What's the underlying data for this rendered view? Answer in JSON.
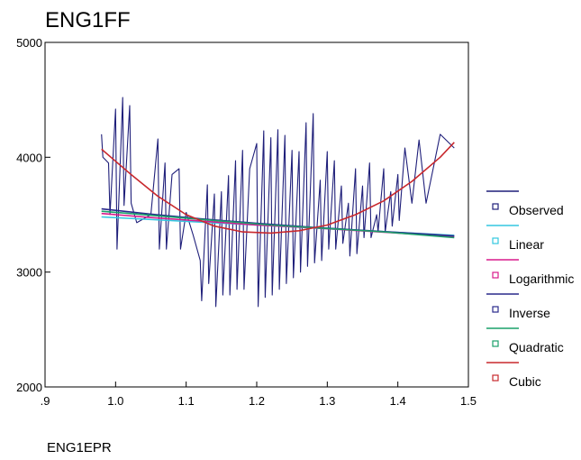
{
  "chart_data": {
    "type": "line",
    "title": "ENG1FF",
    "ylabel": "ENG1FF",
    "xlabel": "ENG1EPR",
    "xlim": [
      0.9,
      1.5
    ],
    "ylim": [
      2000,
      5000
    ],
    "x_ticks": [
      0.9,
      1.0,
      1.1,
      1.2,
      1.3,
      1.4,
      1.5
    ],
    "x_tick_labels": [
      ".9",
      "1.0",
      "1.1",
      "1.2",
      "1.3",
      "1.4",
      "1.5"
    ],
    "y_ticks": [
      2000,
      3000,
      4000,
      5000
    ],
    "y_tick_labels": [
      "2000",
      "3000",
      "4000",
      "5000"
    ],
    "grid": false,
    "legend_position": "right",
    "series": [
      {
        "name": "Observed",
        "color": "#1f1f7a",
        "x": [
          0.98,
          0.982,
          0.99,
          0.992,
          1.0,
          1.002,
          1.01,
          1.012,
          1.02,
          1.022,
          1.03,
          1.05,
          1.06,
          1.062,
          1.07,
          1.072,
          1.08,
          1.09,
          1.092,
          1.1,
          1.11,
          1.12,
          1.122,
          1.13,
          1.132,
          1.14,
          1.142,
          1.15,
          1.152,
          1.16,
          1.162,
          1.17,
          1.172,
          1.18,
          1.182,
          1.19,
          1.2,
          1.202,
          1.21,
          1.212,
          1.22,
          1.222,
          1.23,
          1.232,
          1.24,
          1.242,
          1.25,
          1.252,
          1.26,
          1.262,
          1.27,
          1.272,
          1.28,
          1.282,
          1.29,
          1.292,
          1.3,
          1.302,
          1.31,
          1.312,
          1.32,
          1.322,
          1.33,
          1.332,
          1.34,
          1.342,
          1.35,
          1.352,
          1.36,
          1.362,
          1.37,
          1.372,
          1.38,
          1.382,
          1.39,
          1.392,
          1.4,
          1.402,
          1.41,
          1.42,
          1.43,
          1.44,
          1.46,
          1.48
        ],
        "y": [
          4200,
          4000,
          3950,
          3500,
          4420,
          3200,
          4520,
          3580,
          4450,
          3600,
          3430,
          3500,
          4160,
          3200,
          3950,
          3200,
          3850,
          3900,
          3200,
          3520,
          3320,
          3100,
          2750,
          3760,
          2900,
          3680,
          2700,
          3700,
          2800,
          3840,
          2800,
          3970,
          2850,
          4060,
          2850,
          3900,
          4120,
          2700,
          4230,
          2780,
          4170,
          2800,
          4240,
          2850,
          4190,
          2900,
          4060,
          2950,
          4050,
          3000,
          4300,
          3050,
          4380,
          3080,
          3800,
          3100,
          4050,
          3200,
          3970,
          3200,
          3750,
          3250,
          3600,
          3140,
          3900,
          3160,
          3750,
          3300,
          3950,
          3300,
          3500,
          3350,
          3900,
          3350,
          3700,
          3400,
          3850,
          3450,
          4080,
          3600,
          4150,
          3600,
          4200,
          4080
        ]
      },
      {
        "name": "Linear",
        "color": "#33c7e0",
        "x": [
          0.98,
          1.48
        ],
        "y": [
          3480,
          3320
        ]
      },
      {
        "name": "Logarithmic",
        "color": "#d81b8c",
        "x": [
          0.98,
          1.05,
          1.12,
          1.2,
          1.28,
          1.36,
          1.44,
          1.48
        ],
        "y": [
          3510,
          3475,
          3445,
          3410,
          3385,
          3355,
          3325,
          3310
        ]
      },
      {
        "name": "Inverse",
        "color": "#2a2a8c",
        "x": [
          0.98,
          1.05,
          1.12,
          1.2,
          1.28,
          1.36,
          1.44,
          1.48
        ],
        "y": [
          3550,
          3505,
          3465,
          3425,
          3390,
          3360,
          3330,
          3315
        ]
      },
      {
        "name": "Quadratic",
        "color": "#1aa06a",
        "x": [
          0.98,
          1.06,
          1.14,
          1.22,
          1.3,
          1.38,
          1.48
        ],
        "y": [
          3530,
          3490,
          3450,
          3410,
          3380,
          3350,
          3300
        ]
      },
      {
        "name": "Cubic",
        "color": "#c8282d",
        "x": [
          0.98,
          1.02,
          1.06,
          1.1,
          1.14,
          1.18,
          1.22,
          1.26,
          1.3,
          1.34,
          1.38,
          1.42,
          1.46,
          1.48
        ],
        "y": [
          4070,
          3860,
          3660,
          3500,
          3400,
          3350,
          3340,
          3360,
          3410,
          3500,
          3620,
          3790,
          4000,
          4130
        ]
      }
    ]
  }
}
